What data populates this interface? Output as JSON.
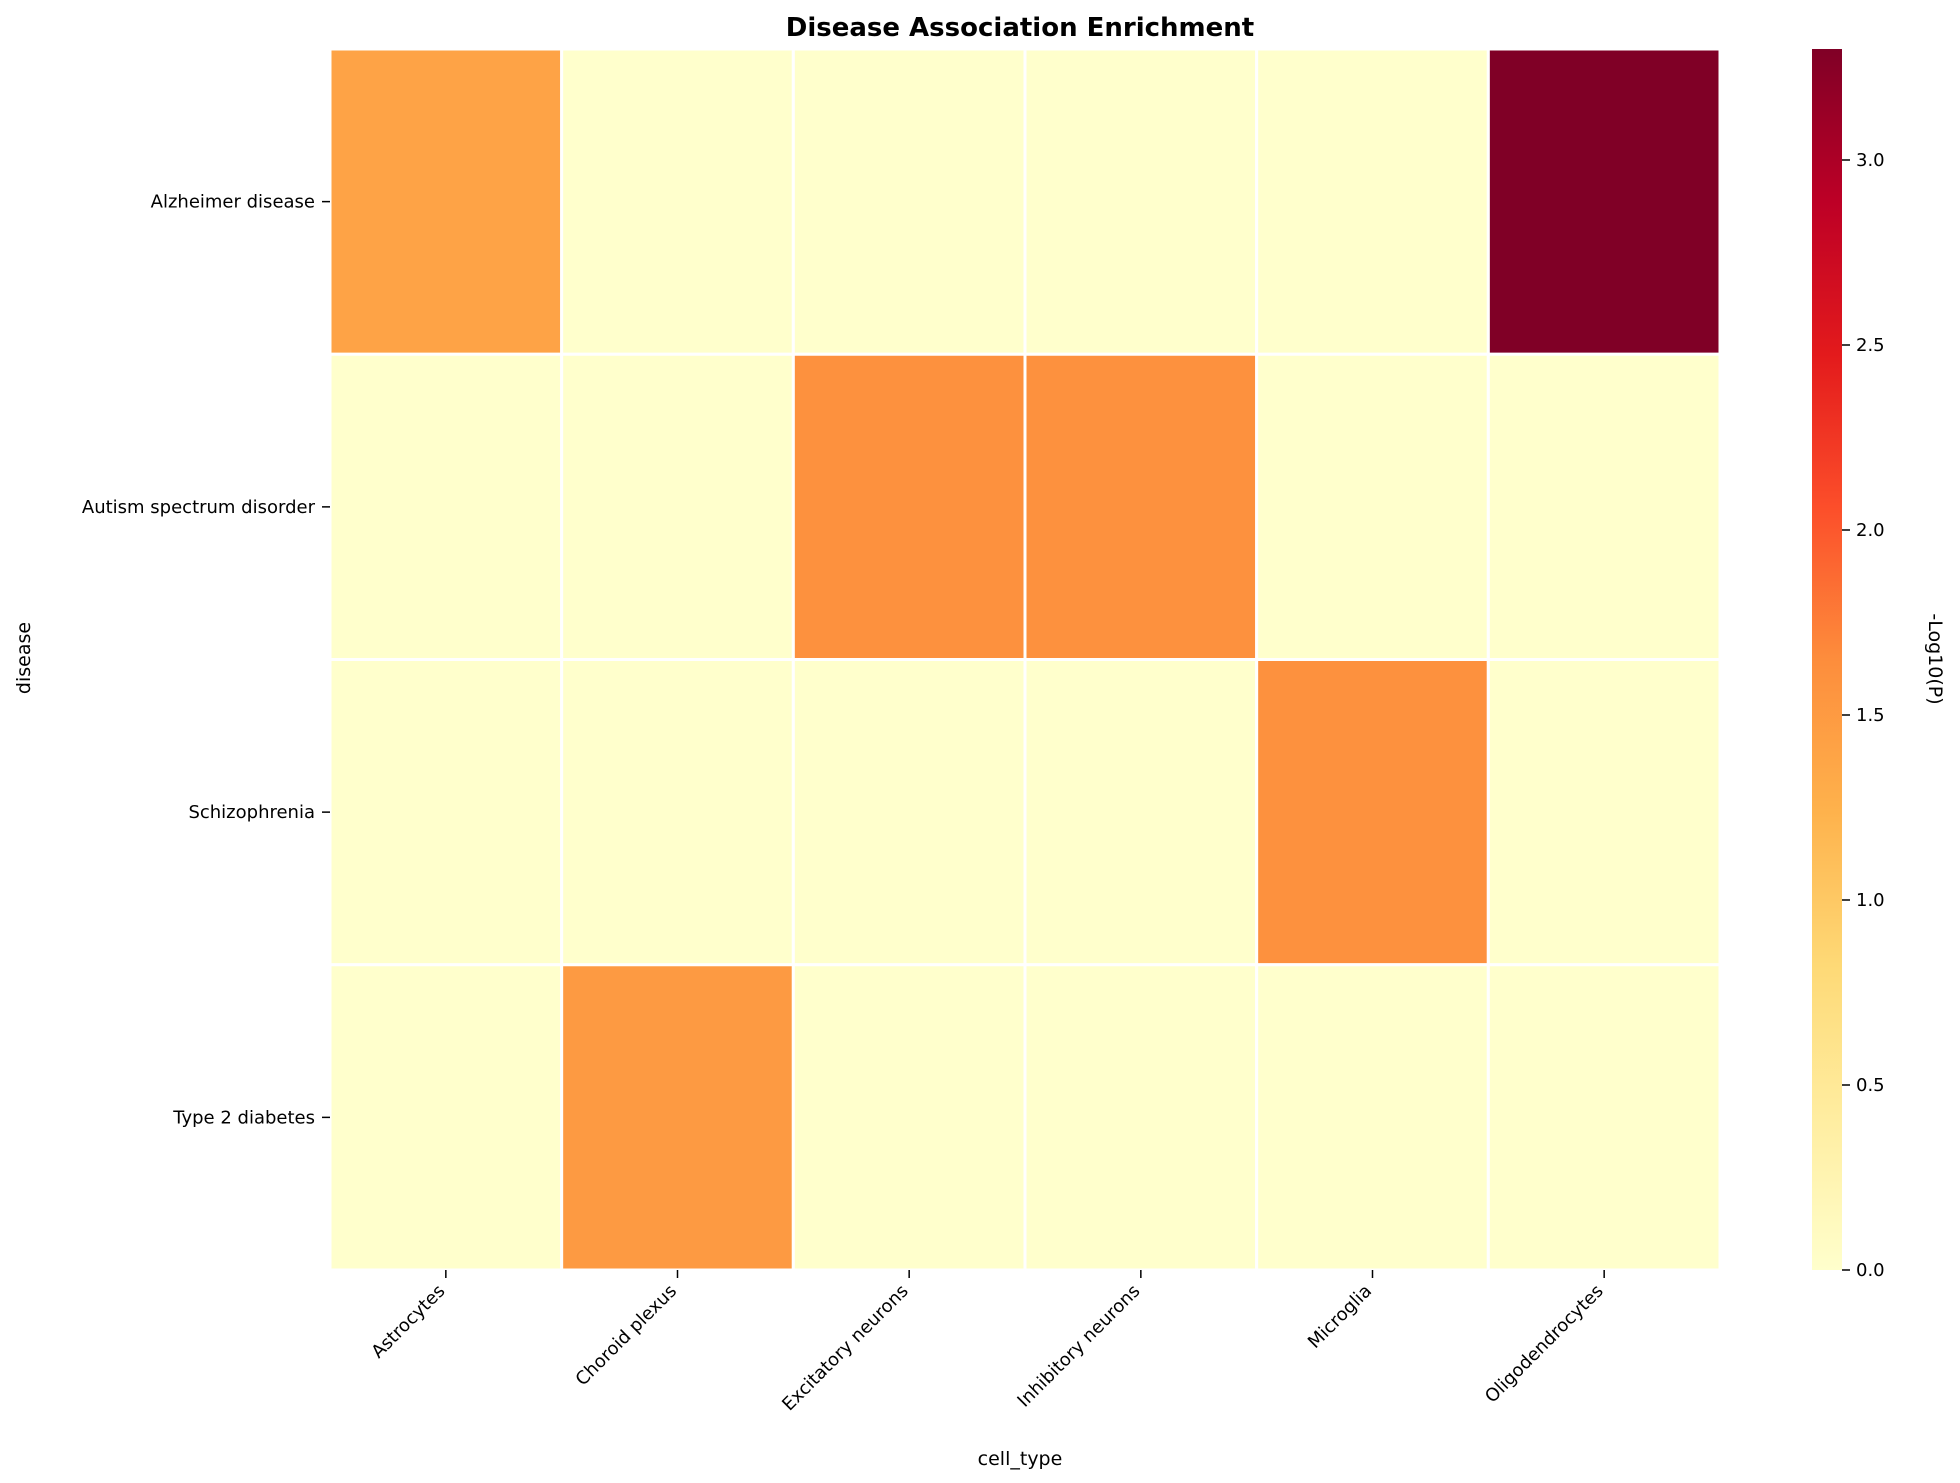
{
  "chart_data": {
    "type": "heatmap",
    "title": "Disease Association Enrichment",
    "xlabel": "cell_type",
    "ylabel": "disease",
    "x_categories": [
      "Astrocytes",
      "Choroid plexus",
      "Excitatory neurons",
      "Inhibitory neurons",
      "Microglia",
      "Oligodendrocytes"
    ],
    "y_categories": [
      "Alzheimer disease",
      "Autism spectrum disorder",
      "Schizophrenia",
      "Type 2 diabetes"
    ],
    "values": [
      [
        1.4,
        0.0,
        0.0,
        0.0,
        0.0,
        3.3
      ],
      [
        0.0,
        0.0,
        1.6,
        1.6,
        0.0,
        0.0
      ],
      [
        0.0,
        0.0,
        0.0,
        0.0,
        1.6,
        0.0
      ],
      [
        0.0,
        1.5,
        0.0,
        0.0,
        0.0,
        0.0
      ]
    ],
    "colorbar": {
      "label": "-Log10(P)",
      "range": [
        0,
        3.3
      ],
      "ticks": [
        "0.0",
        "0.5",
        "1.0",
        "1.5",
        "2.0",
        "2.5",
        "3.0"
      ],
      "tick_values": [
        0,
        0.5,
        1.0,
        1.5,
        2.0,
        2.5,
        3.0
      ],
      "colormap": "YlOrRd",
      "colormap_stops": [
        "#ffffcc",
        "#ffeda0",
        "#fed976",
        "#feb24c",
        "#fd8d3c",
        "#fc4e2a",
        "#e31a1c",
        "#bd0026",
        "#800026"
      ]
    },
    "cell_border_color": "#ffffff"
  }
}
